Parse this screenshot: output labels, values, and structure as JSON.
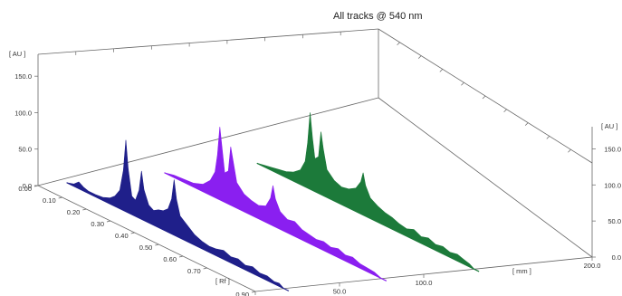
{
  "chart_data": {
    "type": "area",
    "title": "All tracks @ 540 nm",
    "y_axis_unit": "[ AU ]",
    "y_ticks": [
      "0.0",
      "50.0",
      "100.0",
      "150.0"
    ],
    "y_ticks_right": [
      "0.0",
      "50.0",
      "100.0",
      "150.0"
    ],
    "rf_axis_unit": "[ Rf ]",
    "rf_ticks": [
      "0.00",
      "0.10",
      "0.20",
      "0.30",
      "0.40",
      "0.50",
      "0.60",
      "0.70",
      "0.90"
    ],
    "mm_axis_unit": "[ mm ]",
    "mm_ticks": [
      "0.0",
      "50.0",
      "100.0",
      "200.0"
    ],
    "ylim": [
      0,
      180
    ],
    "series": [
      {
        "color": "#1f1f8a",
        "track_mm": 17,
        "points": [
          [
            0.0,
            0
          ],
          [
            0.03,
            3
          ],
          [
            0.05,
            9
          ],
          [
            0.07,
            5
          ],
          [
            0.09,
            3
          ],
          [
            0.12,
            3
          ],
          [
            0.15,
            4
          ],
          [
            0.18,
            8
          ],
          [
            0.2,
            14
          ],
          [
            0.22,
            25
          ],
          [
            0.235,
            55
          ],
          [
            0.245,
            98
          ],
          [
            0.255,
            60
          ],
          [
            0.27,
            25
          ],
          [
            0.285,
            22
          ],
          [
            0.3,
            38
          ],
          [
            0.31,
            66
          ],
          [
            0.32,
            42
          ],
          [
            0.34,
            24
          ],
          [
            0.36,
            20
          ],
          [
            0.38,
            24
          ],
          [
            0.4,
            26
          ],
          [
            0.42,
            32
          ],
          [
            0.435,
            48
          ],
          [
            0.445,
            76
          ],
          [
            0.455,
            50
          ],
          [
            0.47,
            30
          ],
          [
            0.5,
            22
          ],
          [
            0.53,
            14
          ],
          [
            0.56,
            10
          ],
          [
            0.59,
            8
          ],
          [
            0.62,
            9
          ],
          [
            0.65,
            12
          ],
          [
            0.68,
            8
          ],
          [
            0.71,
            10
          ],
          [
            0.74,
            6
          ],
          [
            0.77,
            9
          ],
          [
            0.8,
            5
          ],
          [
            0.83,
            6
          ],
          [
            0.86,
            3
          ],
          [
            0.88,
            4
          ],
          [
            0.9,
            0
          ]
        ]
      },
      {
        "color": "#8a1ff0",
        "track_mm": 75,
        "points": [
          [
            0.0,
            0
          ],
          [
            0.04,
            3
          ],
          [
            0.08,
            4
          ],
          [
            0.12,
            5
          ],
          [
            0.16,
            10
          ],
          [
            0.19,
            20
          ],
          [
            0.21,
            35
          ],
          [
            0.22,
            60
          ],
          [
            0.23,
            100
          ],
          [
            0.24,
            70
          ],
          [
            0.25,
            40
          ],
          [
            0.265,
            45
          ],
          [
            0.275,
            80
          ],
          [
            0.285,
            62
          ],
          [
            0.3,
            35
          ],
          [
            0.33,
            24
          ],
          [
            0.36,
            20
          ],
          [
            0.39,
            18
          ],
          [
            0.42,
            22
          ],
          [
            0.44,
            36
          ],
          [
            0.45,
            55
          ],
          [
            0.46,
            38
          ],
          [
            0.48,
            24
          ],
          [
            0.51,
            18
          ],
          [
            0.54,
            20
          ],
          [
            0.57,
            14
          ],
          [
            0.6,
            12
          ],
          [
            0.63,
            10
          ],
          [
            0.66,
            12
          ],
          [
            0.69,
            9
          ],
          [
            0.72,
            12
          ],
          [
            0.75,
            8
          ],
          [
            0.78,
            10
          ],
          [
            0.81,
            6
          ],
          [
            0.84,
            5
          ],
          [
            0.87,
            4
          ],
          [
            0.9,
            0
          ]
        ]
      },
      {
        "color": "#1c7a3a",
        "track_mm": 130,
        "points": [
          [
            0.0,
            0
          ],
          [
            0.03,
            2
          ],
          [
            0.06,
            4
          ],
          [
            0.09,
            6
          ],
          [
            0.12,
            8
          ],
          [
            0.15,
            12
          ],
          [
            0.18,
            20
          ],
          [
            0.2,
            35
          ],
          [
            0.21,
            62
          ],
          [
            0.22,
            105
          ],
          [
            0.23,
            72
          ],
          [
            0.24,
            45
          ],
          [
            0.255,
            50
          ],
          [
            0.265,
            86
          ],
          [
            0.275,
            64
          ],
          [
            0.29,
            38
          ],
          [
            0.32,
            28
          ],
          [
            0.35,
            24
          ],
          [
            0.38,
            26
          ],
          [
            0.41,
            32
          ],
          [
            0.43,
            44
          ],
          [
            0.44,
            58
          ],
          [
            0.45,
            42
          ],
          [
            0.47,
            28
          ],
          [
            0.5,
            22
          ],
          [
            0.53,
            18
          ],
          [
            0.56,
            16
          ],
          [
            0.59,
            12
          ],
          [
            0.62,
            10
          ],
          [
            0.65,
            14
          ],
          [
            0.68,
            9
          ],
          [
            0.71,
            12
          ],
          [
            0.74,
            8
          ],
          [
            0.77,
            10
          ],
          [
            0.8,
            7
          ],
          [
            0.83,
            9
          ],
          [
            0.86,
            6
          ],
          [
            0.88,
            4
          ],
          [
            0.9,
            0
          ]
        ]
      }
    ]
  }
}
